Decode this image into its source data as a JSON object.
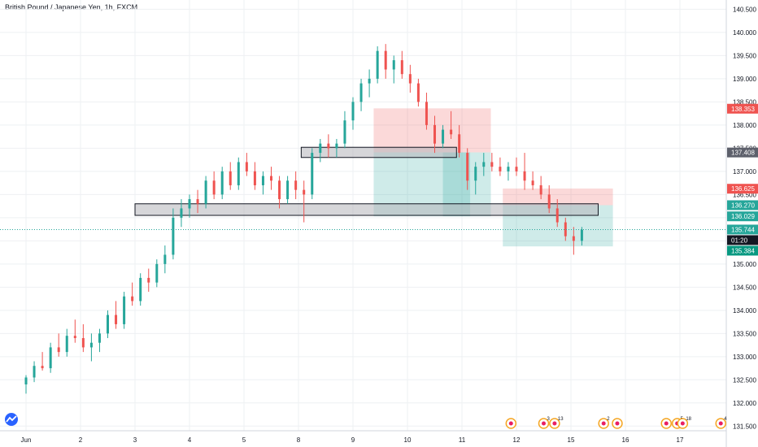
{
  "header": {
    "title": "British Pound / Japanese Yen, 1h, FXCM"
  },
  "colors": {
    "up": "#26a69a",
    "down": "#ef5350",
    "label_red": "#ef5350",
    "label_gray": "#5d606b",
    "label_teal": "#26a69a",
    "label_green": "#089981",
    "label_dark": "#131722"
  },
  "chart_data": {
    "type": "candlestick",
    "title": "British Pound / Japanese Yen, 1h, FXCM",
    "ylim": [
      131.4,
      140.7
    ],
    "y_ticks": [
      "131.500",
      "132.000",
      "132.500",
      "133.000",
      "133.500",
      "134.000",
      "134.500",
      "135.000",
      "135.500",
      "136.000",
      "136.500",
      "137.000",
      "137.500",
      "138.000",
      "138.500",
      "139.000",
      "139.500",
      "140.000",
      "140.500"
    ],
    "x_ticks": [
      "Jun",
      "2",
      "3",
      "4",
      "5",
      "8",
      "9",
      "10",
      "11",
      "12",
      "15",
      "16",
      "17"
    ],
    "grid": true,
    "price_labels": [
      {
        "text": "138.353",
        "value": 138.353,
        "style": "red"
      },
      {
        "text": "137.408",
        "value": 137.408,
        "style": "gray"
      },
      {
        "text": "136.625",
        "value": 136.625,
        "style": "red"
      },
      {
        "text": "136.270",
        "value": 136.27,
        "style": "teal"
      },
      {
        "text": "136.029",
        "value": 136.029,
        "style": "teal"
      },
      {
        "text": "135.744",
        "value": 135.744,
        "style": "teal"
      },
      {
        "text": "01:20",
        "value": 135.52,
        "style": "dark"
      },
      {
        "text": "135.384",
        "value": 135.384,
        "style": "green"
      }
    ],
    "last_price": 135.744,
    "zones": [
      {
        "name": "zone-upper",
        "x_from": 5.05,
        "x_to": 7.9,
        "y_low": 137.3,
        "y_high": 137.52,
        "color": "#d1d4dc"
      },
      {
        "name": "zone-lower",
        "x_from": 2.0,
        "x_to": 10.5,
        "y_low": 136.05,
        "y_high": 136.3,
        "color": "#d1d4dc"
      }
    ],
    "positions": [
      {
        "name": "position-short-1",
        "x_from": 6.38,
        "x_to": 8.53,
        "entry": 137.41,
        "stop": 138.36,
        "target": 136.03
      },
      {
        "name": "position-short-2",
        "x_from": 8.75,
        "x_to": 10.77,
        "entry": 136.27,
        "stop": 136.63,
        "target": 135.38
      },
      {
        "name": "position-overlay",
        "x_from": 7.65,
        "x_to": 8.15,
        "entry": 137.41,
        "stop": 137.41,
        "target": 136.03
      }
    ],
    "ohlc": [
      [
        132.4,
        132.6,
        132.2,
        132.55
      ],
      [
        132.55,
        132.9,
        132.45,
        132.8
      ],
      [
        132.8,
        133.1,
        132.7,
        132.75
      ],
      [
        132.75,
        133.3,
        132.65,
        133.2
      ],
      [
        133.2,
        133.5,
        133.0,
        133.1
      ],
      [
        133.1,
        133.6,
        133.0,
        133.45
      ],
      [
        133.45,
        133.8,
        133.3,
        133.4
      ],
      [
        133.4,
        133.7,
        133.1,
        133.2
      ],
      [
        133.2,
        133.5,
        132.9,
        133.3
      ],
      [
        133.3,
        133.6,
        133.1,
        133.5
      ],
      [
        133.5,
        134.0,
        133.4,
        133.9
      ],
      [
        133.9,
        134.2,
        133.6,
        133.7
      ],
      [
        133.7,
        134.4,
        133.6,
        134.3
      ],
      [
        134.3,
        134.6,
        134.1,
        134.2
      ],
      [
        134.2,
        134.8,
        134.1,
        134.7
      ],
      [
        134.7,
        134.9,
        134.4,
        134.6
      ],
      [
        134.6,
        135.1,
        134.5,
        135.0
      ],
      [
        135.0,
        135.4,
        134.8,
        135.2
      ],
      [
        135.2,
        136.2,
        135.1,
        136.0
      ],
      [
        136.0,
        136.4,
        135.8,
        136.2
      ],
      [
        136.2,
        136.5,
        136.0,
        136.4
      ],
      [
        136.4,
        136.6,
        136.1,
        136.3
      ],
      [
        136.3,
        136.9,
        136.2,
        136.8
      ],
      [
        136.8,
        137.0,
        136.4,
        136.5
      ],
      [
        136.5,
        137.1,
        136.4,
        137.0
      ],
      [
        137.0,
        137.2,
        136.6,
        136.7
      ],
      [
        136.7,
        137.3,
        136.6,
        137.2
      ],
      [
        137.2,
        137.4,
        136.9,
        137.0
      ],
      [
        137.0,
        137.2,
        136.6,
        136.7
      ],
      [
        136.7,
        137.0,
        136.5,
        136.9
      ],
      [
        136.9,
        137.1,
        136.6,
        136.8
      ],
      [
        136.8,
        136.9,
        136.2,
        136.4
      ],
      [
        136.4,
        136.9,
        136.3,
        136.8
      ],
      [
        136.8,
        137.0,
        136.4,
        136.6
      ],
      [
        136.6,
        136.8,
        135.9,
        136.5
      ],
      [
        136.5,
        137.5,
        136.4,
        137.4
      ],
      [
        137.4,
        137.7,
        137.2,
        137.6
      ],
      [
        137.6,
        137.8,
        137.3,
        137.5
      ],
      [
        137.5,
        137.7,
        137.3,
        137.6
      ],
      [
        137.6,
        138.3,
        137.5,
        138.1
      ],
      [
        138.1,
        138.6,
        137.9,
        138.5
      ],
      [
        138.5,
        139.0,
        138.3,
        138.9
      ],
      [
        138.9,
        139.2,
        138.6,
        139.0
      ],
      [
        139.0,
        139.7,
        138.9,
        139.6
      ],
      [
        139.6,
        139.75,
        139.0,
        139.2
      ],
      [
        139.2,
        139.5,
        138.9,
        139.4
      ],
      [
        139.4,
        139.6,
        139.0,
        139.1
      ],
      [
        139.1,
        139.3,
        138.7,
        138.9
      ],
      [
        138.9,
        139.0,
        138.4,
        138.5
      ],
      [
        138.5,
        138.7,
        137.9,
        138.0
      ],
      [
        138.0,
        138.2,
        137.4,
        137.6
      ],
      [
        137.6,
        138.0,
        137.5,
        137.9
      ],
      [
        137.9,
        138.3,
        137.7,
        137.8
      ],
      [
        137.8,
        138.0,
        137.3,
        137.4
      ],
      [
        137.4,
        137.5,
        136.6,
        136.8
      ],
      [
        136.8,
        137.2,
        136.5,
        137.1
      ],
      [
        137.1,
        137.4,
        136.9,
        137.2
      ],
      [
        137.2,
        137.4,
        137.0,
        137.1
      ],
      [
        137.1,
        137.3,
        136.9,
        137.0
      ],
      [
        137.0,
        137.2,
        136.8,
        137.1
      ],
      [
        137.1,
        137.3,
        136.9,
        137.0
      ],
      [
        137.0,
        137.4,
        136.6,
        136.8
      ],
      [
        136.8,
        137.0,
        136.6,
        136.7
      ],
      [
        136.7,
        136.9,
        136.4,
        136.5
      ],
      [
        136.5,
        136.7,
        136.1,
        136.2
      ],
      [
        136.2,
        136.4,
        135.8,
        135.9
      ],
      [
        135.9,
        136.0,
        135.5,
        135.6
      ],
      [
        135.6,
        135.8,
        135.2,
        135.5
      ],
      [
        135.5,
        135.8,
        135.4,
        135.74
      ]
    ],
    "ohlc_x": [
      0.0,
      0.15,
      0.3,
      0.45,
      0.6,
      0.75,
      0.9,
      1.05,
      1.2,
      1.35,
      1.5,
      1.65,
      1.8,
      1.95,
      2.1,
      2.25,
      2.4,
      2.55,
      2.7,
      2.85,
      3.0,
      3.15,
      3.3,
      3.45,
      3.6,
      3.75,
      3.9,
      4.05,
      4.2,
      4.35,
      4.5,
      4.65,
      4.8,
      4.95,
      5.1,
      5.25,
      5.4,
      5.55,
      5.7,
      5.85,
      6.0,
      6.15,
      6.3,
      6.45,
      6.6,
      6.75,
      6.9,
      7.05,
      7.2,
      7.35,
      7.5,
      7.65,
      7.8,
      7.95,
      8.1,
      8.25,
      8.4,
      8.55,
      8.7,
      8.85,
      9.0,
      9.15,
      9.3,
      9.45,
      9.6,
      9.75,
      9.9,
      10.05,
      10.2
    ],
    "event_markers": [
      {
        "x": 8.9,
        "label": ""
      },
      {
        "x": 9.5,
        "label": "3"
      },
      {
        "x": 9.7,
        "label": "13"
      },
      {
        "x": 10.6,
        "label": "2"
      },
      {
        "x": 10.85,
        "label": ""
      },
      {
        "x": 11.75,
        "label": ""
      },
      {
        "x": 11.95,
        "label": "5"
      },
      {
        "x": 12.75,
        "label": "4"
      },
      {
        "x": 13.05,
        "label": "18"
      }
    ]
  }
}
